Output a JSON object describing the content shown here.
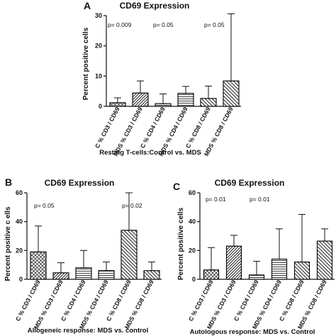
{
  "chart_data": [
    {
      "panel": "A",
      "type": "bar",
      "title": "CD69 Expression",
      "ylabel": "Percent positive cells",
      "xlabel": "Resting T-cells:Control vs. MDS",
      "ylim": [
        0,
        30
      ],
      "yticks": [
        0,
        10,
        20,
        30
      ],
      "categories": [
        "C % CD3 / CD69",
        "MDS % CD3 / CD69",
        "C % CD4 / CD69",
        "MDS % CD4 / CD69",
        "C % CD8 / CD69",
        "MDS % CD8 / CD69"
      ],
      "values": [
        1.2,
        4.4,
        0.9,
        4.3,
        2.6,
        8.4
      ],
      "errors": [
        1.6,
        4.0,
        3.2,
        2.3,
        4.1,
        22.5
      ],
      "patterns": [
        "cross",
        "diag-right",
        "horiz",
        "horiz",
        "diag-left",
        "diag-left"
      ],
      "annotations": [
        "p= 0.009",
        "p= 0.05",
        "p= 0.05"
      ]
    },
    {
      "panel": "B",
      "type": "bar",
      "title": "CD69 Expression",
      "ylabel": "Percent positive c ells",
      "xlabel": "Allogeneic response: MDS vs. control",
      "ylim": [
        0,
        60
      ],
      "yticks": [
        0,
        20,
        40,
        60
      ],
      "categories": [
        "C % CD3 / CD69",
        "MDS % CD3 / CD69",
        "C % CD4 / CD69",
        "MDS % CD4 / CD69",
        "C % CD8 / CD69",
        "MDS % CD8 / CD69"
      ],
      "values": [
        19,
        4.5,
        8,
        6,
        34,
        6
      ],
      "errors": [
        18,
        7,
        12,
        6,
        26,
        6
      ],
      "patterns": [
        "cross",
        "diag-right",
        "horiz",
        "horiz",
        "diag-left",
        "diag-left"
      ],
      "annotations": [
        "p= 0.05",
        "p= 0.02"
      ]
    },
    {
      "panel": "C",
      "type": "bar",
      "title": "CD69 Expression",
      "ylabel": "Percent positive cells",
      "xlabel": "Autologous response: MDS vs. Control",
      "ylim": [
        0,
        60
      ],
      "yticks": [
        0,
        20,
        40,
        60
      ],
      "categories": [
        "C % CD3 / CD69",
        "MDS % CD3 / CD69",
        "C % CD4 / CD69",
        "MDS % CD4 / CD69",
        "C % CD8 / CD69",
        "MDS % CD8 / CD69"
      ],
      "values": [
        6.5,
        23,
        3,
        14,
        12,
        26.5
      ],
      "errors": [
        15.5,
        7.5,
        9.5,
        21,
        33,
        8.5
      ],
      "patterns": [
        "cross",
        "diag-right",
        "horiz",
        "horiz",
        "diag-left",
        "diag-left"
      ],
      "annotations": [
        "p= 0.01",
        "p= 0.01"
      ]
    }
  ]
}
